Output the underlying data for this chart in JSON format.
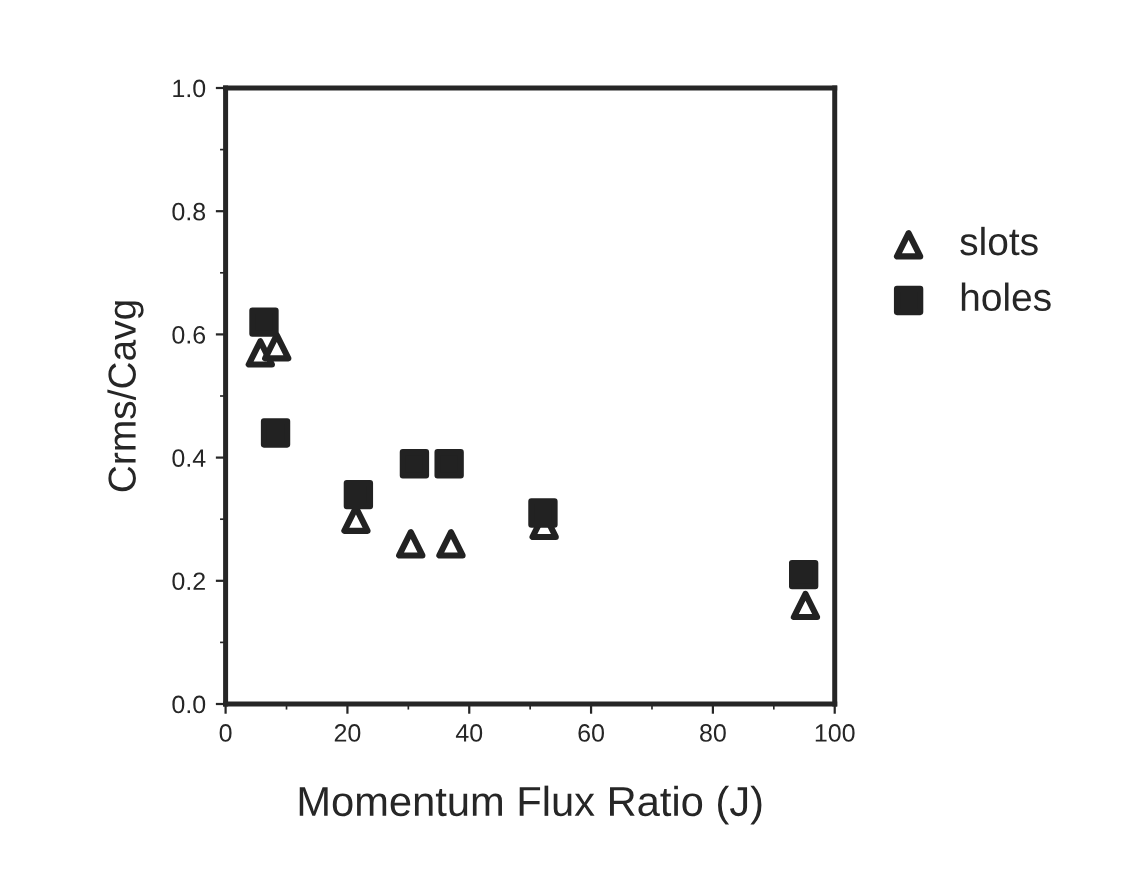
{
  "chart_data": {
    "type": "scatter",
    "xlabel": "Momentum Flux Ratio (J)",
    "ylabel": "Crms/Cavg",
    "xlim": [
      0,
      100
    ],
    "ylim": [
      0,
      1.0
    ],
    "xticks": [
      0,
      20,
      40,
      60,
      80,
      100
    ],
    "yticks": [
      {
        "value": 0,
        "label": "0.0"
      },
      {
        "value": 0.2,
        "label": "0.2"
      },
      {
        "value": 0.4,
        "label": "0.4"
      },
      {
        "value": 0.6,
        "label": "0.6"
      },
      {
        "value": 0.8,
        "label": "0.8"
      },
      {
        "value": 1.0,
        "label": "1.0"
      }
    ],
    "grid": false,
    "legend": "right",
    "series": [
      {
        "name": "slots",
        "color": "#222222",
        "marker": "triangle",
        "x": [
          5.7,
          8.4,
          21.4,
          30.4,
          37.0,
          52.3,
          95.2
        ],
        "values": [
          0.57,
          0.58,
          0.3,
          0.26,
          0.26,
          0.29,
          0.16
        ]
      },
      {
        "name": "holes",
        "color": "#222222",
        "marker": "square",
        "x": [
          6.3,
          8.2,
          21.8,
          31.0,
          36.7,
          52.1,
          94.9
        ],
        "values": [
          0.62,
          0.44,
          0.34,
          0.39,
          0.39,
          0.31,
          0.21
        ]
      }
    ]
  }
}
